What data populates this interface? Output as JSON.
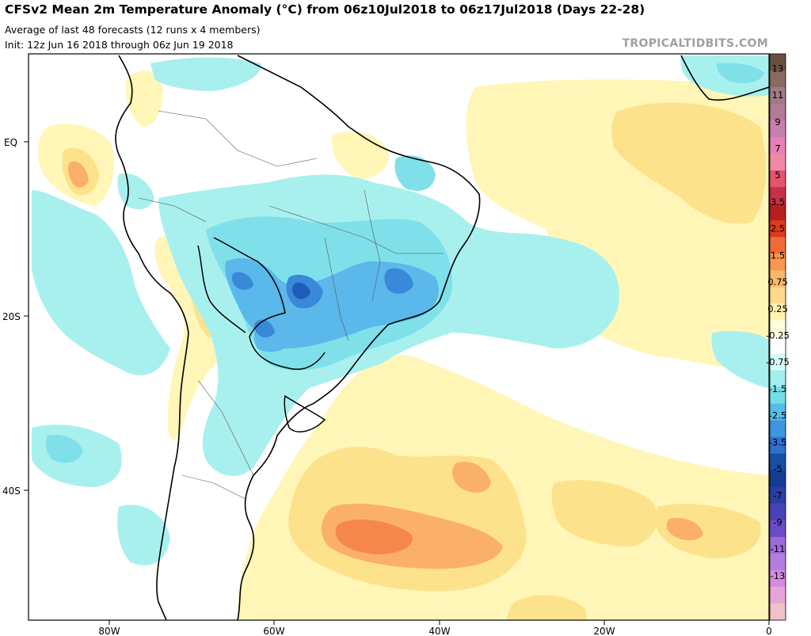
{
  "header": {
    "title": "CFSv2 Mean 2m Temperature Anomaly (°C) from 06z10Jul2018 to 06z17Jul2018 (Days 22-28)",
    "subtitle": "Average of last 48 forecasts (12 runs x 4 members)",
    "init": "Init: 12z Jun 16 2018 through 06z Jun 19 2018",
    "brand": "TROPICALTIDBITS.COM"
  },
  "axes": {
    "lat_labels": [
      "EQ",
      "20S",
      "40S"
    ],
    "lon_labels": [
      "80W",
      "60W",
      "40W",
      "20W",
      "0"
    ]
  },
  "colorbar": {
    "labels": [
      "13",
      "11",
      "9",
      "7",
      "5",
      "3.5",
      "2.5",
      "1.5",
      "0.75",
      "0.25",
      "-0.25",
      "-0.75",
      "-1.5",
      "-2.5",
      "-3.5",
      "-5",
      "-7",
      "-9",
      "-11",
      "-13"
    ],
    "colors": [
      "#6b4f3d",
      "#8a6a5e",
      "#a07a86",
      "#b27a98",
      "#c77fb0",
      "#e880b8",
      "#f288a8",
      "#e4546c",
      "#c82e48",
      "#b81e1e",
      "#dc3a1c",
      "#f26a38",
      "#f7964f",
      "#fbb86a",
      "#fdd98c",
      "#fef3b0",
      "#ffffdd",
      "#ffffff",
      "#d6fbfa",
      "#9ff0ef",
      "#74dde8",
      "#56bde8",
      "#3e95e0",
      "#2f6fd0",
      "#164fa6",
      "#143c94",
      "#2a3ea6",
      "#4a42b8",
      "#6a4cc8",
      "#9d6ad8",
      "#b47ee0",
      "#d48ae0",
      "#e8a4d8",
      "#f0c2c8"
    ]
  }
}
